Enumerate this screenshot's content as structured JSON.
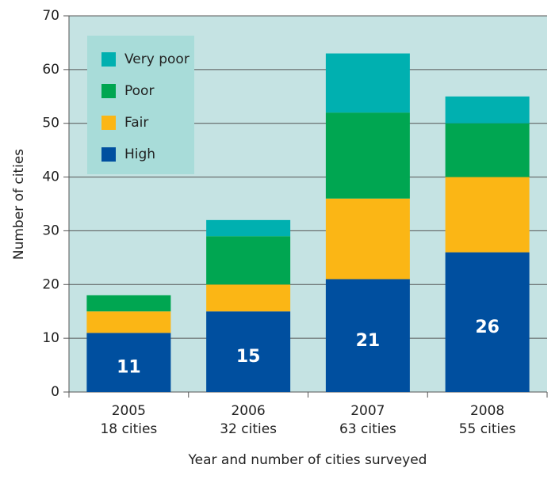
{
  "chart_data": {
    "type": "stacked_bar",
    "categories": [
      [
        "2005",
        "18 cities"
      ],
      [
        "2006",
        "32 cities"
      ],
      [
        "2007",
        "63 cities"
      ],
      [
        "2008",
        "55 cities"
      ]
    ],
    "series": [
      {
        "name": "High",
        "color": "#004f9f",
        "values": [
          11,
          15,
          21,
          26
        ],
        "labels": true
      },
      {
        "name": "Fair",
        "color": "#fbb615",
        "values": [
          4,
          5,
          15,
          14
        ]
      },
      {
        "name": "Poor",
        "color": "#00a651",
        "values": [
          3,
          9,
          16,
          10
        ]
      },
      {
        "name": "Very poor",
        "color": "#00b0b0",
        "values": [
          0,
          3,
          11,
          5
        ]
      }
    ],
    "ylabel": "Number of cities",
    "xlabel": "Year and number of cities surveyed",
    "ylim": [
      0,
      70
    ],
    "yticks": [
      0,
      10,
      20,
      30,
      40,
      50,
      60,
      70
    ],
    "grid": true,
    "legend": "upper left"
  }
}
